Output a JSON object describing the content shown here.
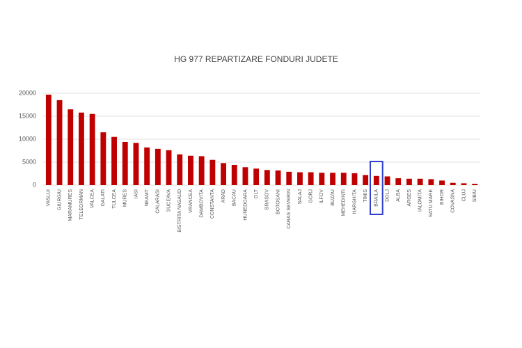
{
  "chart_data": {
    "type": "bar",
    "title": "HG 977 REPARTIZARE FONDURI JUDETE",
    "categories": [
      "VASLUI",
      "GIURGIU",
      "MARAMURES",
      "TELEORMAN",
      "VALCEA",
      "GALATI",
      "TULCEA",
      "MURES",
      "IASI",
      "NEAMT",
      "CALARASI",
      "SUCEAVA",
      "BISTRITA NASAUD",
      "VRANCEA",
      "DAMBOVITA",
      "CONSTANTA",
      "ARAD",
      "BACAU",
      "HUNEDOARA",
      "OLT",
      "BRASOV",
      "BOTOSANI",
      "CARAS SEVERIN",
      "SALAJ",
      "GORJ",
      "ILFOV",
      "BUZAU",
      "MEHEDINTI",
      "HARGHITA",
      "TIMIS",
      "BRAILA",
      "DOLJ",
      "ALBA",
      "ARGES",
      "IALOMITA",
      "SATU MARE",
      "BIHOR",
      "COVASNA",
      "CLUJ",
      "SIBIU"
    ],
    "values": [
      19700,
      18500,
      16500,
      15800,
      15500,
      11500,
      10500,
      9400,
      9200,
      8200,
      7900,
      7600,
      6700,
      6400,
      6300,
      5500,
      4800,
      4400,
      3900,
      3600,
      3300,
      3200,
      2900,
      2800,
      2800,
      2700,
      2700,
      2700,
      2600,
      2200,
      2000,
      1900,
      1500,
      1400,
      1400,
      1300,
      1000,
      500,
      400,
      300
    ],
    "color": "#c00000",
    "ylim": [
      0,
      20000
    ],
    "yticks": [
      0,
      5000,
      10000,
      15000,
      20000
    ],
    "grid": true
  }
}
